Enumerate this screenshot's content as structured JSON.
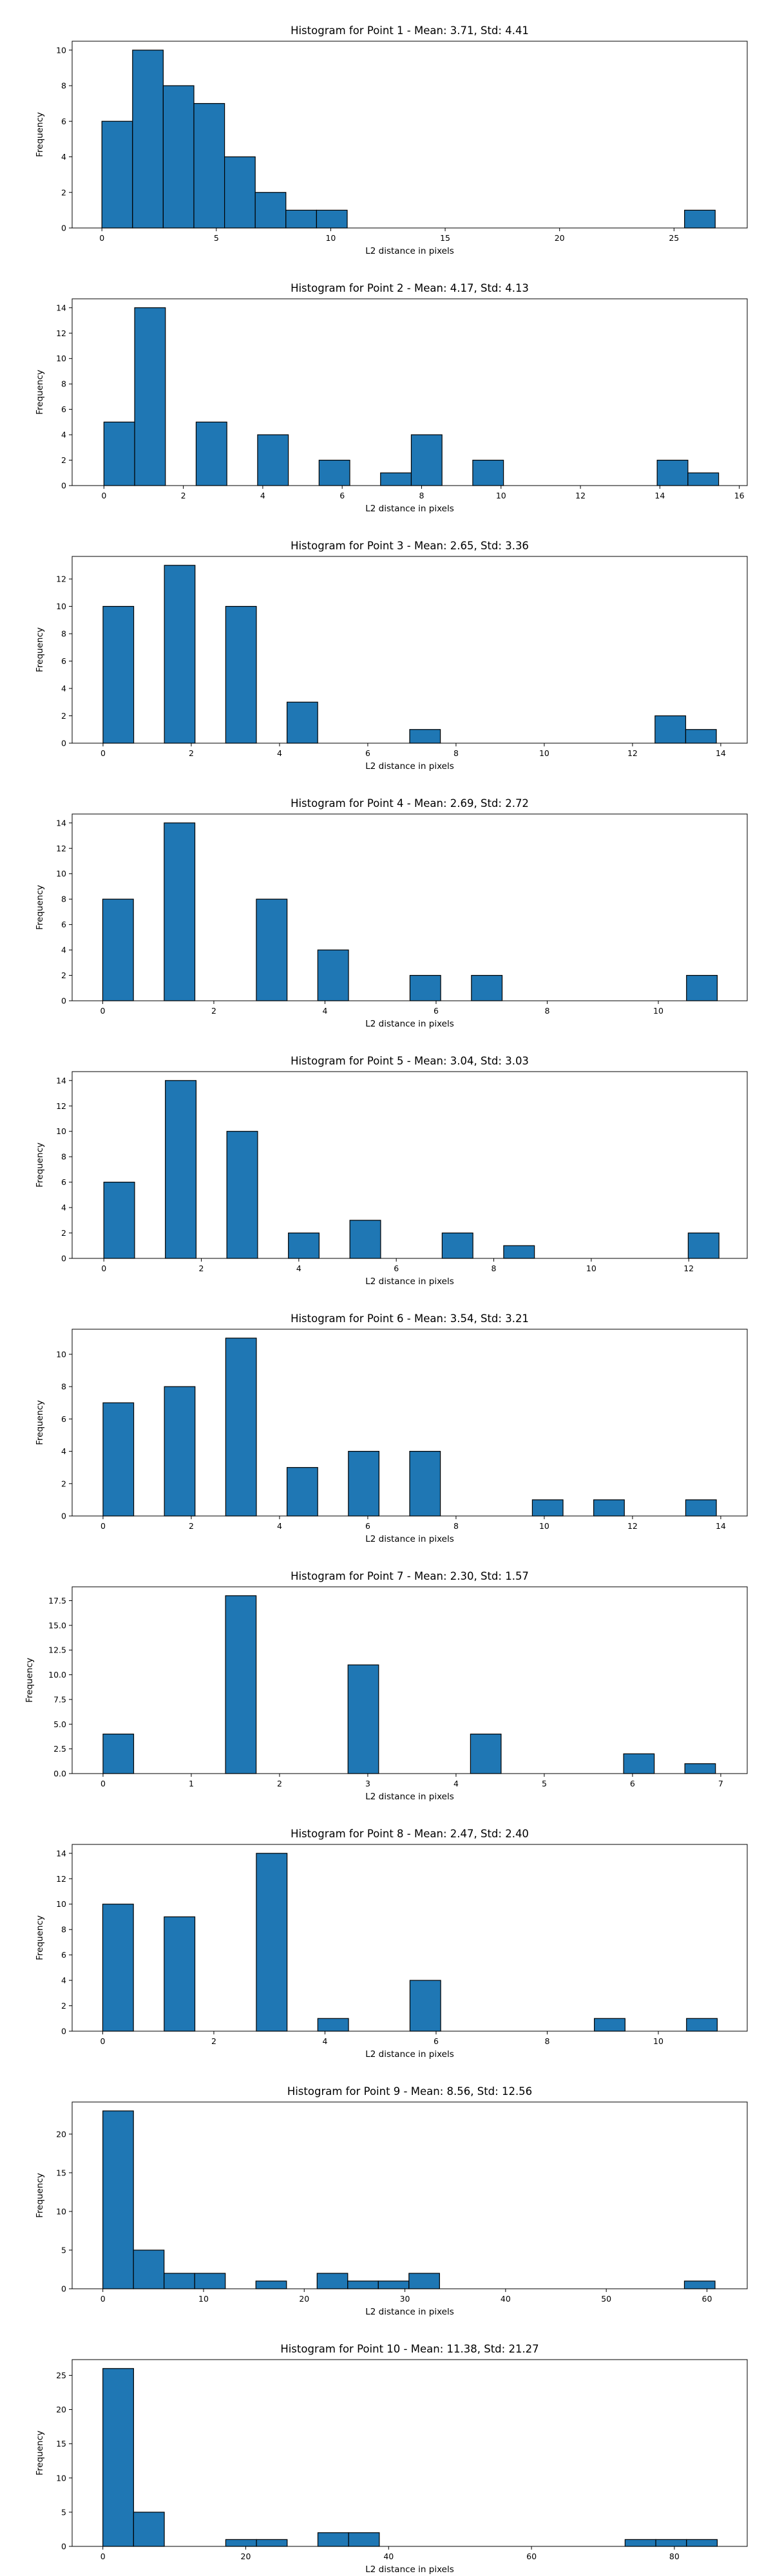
{
  "chart_data": [
    {
      "type": "bar",
      "title": "Histogram for Point 1 - Mean: 3.71, Std: 4.41",
      "xlabel": "L2 distance in pixels",
      "ylabel": "Frequency",
      "xlim": [
        -1.3,
        28.2
      ],
      "ylim": [
        0,
        10.5
      ],
      "xticks": [
        0,
        5,
        10,
        15,
        20,
        25
      ],
      "yticks": [
        0,
        2,
        4,
        6,
        8,
        10
      ],
      "bin_start": 0.0,
      "bin_width": 1.34,
      "values": [
        6,
        10,
        8,
        7,
        4,
        2,
        1,
        1,
        0,
        0,
        0,
        0,
        0,
        0,
        0,
        0,
        0,
        0,
        0,
        1
      ]
    },
    {
      "type": "bar",
      "title": "Histogram for Point 2 - Mean: 4.17, Std: 4.13",
      "xlabel": "L2 distance in pixels",
      "ylabel": "Frequency",
      "xlim": [
        -0.8,
        16.2
      ],
      "ylim": [
        0,
        14.7
      ],
      "xticks": [
        0,
        2,
        4,
        6,
        8,
        10,
        12,
        14,
        16
      ],
      "yticks": [
        0,
        2,
        4,
        6,
        8,
        10,
        12,
        14
      ],
      "bin_start": 0.0,
      "bin_width": 0.774,
      "values": [
        5,
        14,
        0,
        5,
        0,
        4,
        0,
        2,
        0,
        1,
        4,
        0,
        2,
        0,
        0,
        0,
        0,
        0,
        2,
        1
      ]
    },
    {
      "type": "bar",
      "title": "Histogram for Point 3 - Mean: 2.65, Std: 3.36",
      "xlabel": "L2 distance in pixels",
      "ylabel": "Frequency",
      "xlim": [
        -0.7,
        14.6
      ],
      "ylim": [
        0,
        13.65
      ],
      "xticks": [
        0,
        2,
        4,
        6,
        8,
        10,
        12,
        14
      ],
      "yticks": [
        0,
        2,
        4,
        6,
        8,
        10,
        12
      ],
      "bin_start": 0.0,
      "bin_width": 0.695,
      "values": [
        10,
        0,
        13,
        0,
        10,
        0,
        3,
        0,
        0,
        0,
        1,
        0,
        0,
        0,
        0,
        0,
        0,
        0,
        2,
        1
      ]
    },
    {
      "type": "bar",
      "title": "Histogram for Point 4 - Mean: 2.69, Std: 2.72",
      "xlabel": "L2 distance in pixels",
      "ylabel": "Frequency",
      "xlim": [
        -0.55,
        11.6
      ],
      "ylim": [
        0,
        14.7
      ],
      "xticks": [
        0,
        2,
        4,
        6,
        8,
        10
      ],
      "yticks": [
        0,
        2,
        4,
        6,
        8,
        10,
        12,
        14
      ],
      "bin_start": 0.0,
      "bin_width": 0.553,
      "values": [
        8,
        0,
        14,
        0,
        0,
        8,
        0,
        4,
        0,
        0,
        2,
        0,
        2,
        0,
        0,
        0,
        0,
        0,
        0,
        2
      ]
    },
    {
      "type": "bar",
      "title": "Histogram for Point 5 - Mean: 3.04, Std: 3.03",
      "xlabel": "L2 distance in pixels",
      "ylabel": "Frequency",
      "xlim": [
        -0.65,
        13.2
      ],
      "ylim": [
        0,
        14.7
      ],
      "xticks": [
        0,
        2,
        4,
        6,
        8,
        10,
        12
      ],
      "yticks": [
        0,
        2,
        4,
        6,
        8,
        10,
        12,
        14
      ],
      "bin_start": 0.0,
      "bin_width": 0.631,
      "values": [
        6,
        0,
        14,
        0,
        10,
        0,
        2,
        0,
        3,
        0,
        0,
        2,
        0,
        1,
        0,
        0,
        0,
        0,
        0,
        2
      ]
    },
    {
      "type": "bar",
      "title": "Histogram for Point 6 - Mean: 3.54, Std: 3.21",
      "xlabel": "L2 distance in pixels",
      "ylabel": "Frequency",
      "xlim": [
        -0.7,
        14.6
      ],
      "ylim": [
        0,
        11.55
      ],
      "xticks": [
        0,
        2,
        4,
        6,
        8,
        10,
        12,
        14
      ],
      "yticks": [
        0,
        2,
        4,
        6,
        8,
        10
      ],
      "bin_start": 0.0,
      "bin_width": 0.695,
      "values": [
        7,
        0,
        8,
        0,
        11,
        0,
        3,
        0,
        4,
        0,
        4,
        0,
        0,
        0,
        1,
        0,
        1,
        0,
        0,
        1
      ]
    },
    {
      "type": "bar",
      "title": "Histogram for Point 7 - Mean: 2.30, Std: 1.57",
      "xlabel": "L2 distance in pixels",
      "ylabel": "Frequency",
      "xlim": [
        -0.35,
        7.3
      ],
      "ylim": [
        0,
        18.9
      ],
      "xticks": [
        0,
        1,
        2,
        3,
        4,
        5,
        6,
        7
      ],
      "yticks": [
        0.0,
        2.5,
        5.0,
        7.5,
        10.0,
        12.5,
        15.0,
        17.5
      ],
      "bin_start": 0.0,
      "bin_width": 0.347,
      "values": [
        4,
        0,
        0,
        0,
        18,
        0,
        0,
        0,
        11,
        0,
        0,
        0,
        4,
        0,
        0,
        0,
        0,
        2,
        0,
        1
      ]
    },
    {
      "type": "bar",
      "title": "Histogram for Point 8 - Mean: 2.47, Std: 2.40",
      "xlabel": "L2 distance in pixels",
      "ylabel": "Frequency",
      "xlim": [
        -0.55,
        11.6
      ],
      "ylim": [
        0,
        14.7
      ],
      "xticks": [
        0,
        2,
        4,
        6,
        8,
        10
      ],
      "yticks": [
        0,
        2,
        4,
        6,
        8,
        10,
        12,
        14
      ],
      "bin_start": 0.0,
      "bin_width": 0.553,
      "values": [
        10,
        0,
        9,
        0,
        0,
        14,
        0,
        1,
        0,
        0,
        4,
        0,
        0,
        0,
        0,
        0,
        1,
        0,
        0,
        1
      ]
    },
    {
      "type": "bar",
      "title": "Histogram for Point 9 - Mean: 8.56, Std: 12.56",
      "xlabel": "L2 distance in pixels",
      "ylabel": "Frequency",
      "xlim": [
        -3.05,
        64.0
      ],
      "ylim": [
        0,
        24.15
      ],
      "xticks": [
        0,
        10,
        20,
        30,
        40,
        50,
        60
      ],
      "yticks": [
        0,
        5,
        10,
        15,
        20
      ],
      "bin_start": 0.0,
      "bin_width": 3.04,
      "values": [
        23,
        5,
        2,
        2,
        0,
        1,
        0,
        2,
        1,
        1,
        2,
        0,
        0,
        0,
        0,
        0,
        0,
        0,
        0,
        1
      ]
    },
    {
      "type": "bar",
      "title": "Histogram for Point 10 - Mean: 11.38, Std: 21.27",
      "xlabel": "L2 distance in pixels",
      "ylabel": "Frequency",
      "xlim": [
        -4.3,
        90.2
      ],
      "ylim": [
        0,
        27.3
      ],
      "xticks": [
        0,
        20,
        40,
        60,
        80
      ],
      "yticks": [
        0,
        5,
        10,
        15,
        20,
        25
      ],
      "bin_start": 0.0,
      "bin_width": 4.3,
      "values": [
        26,
        5,
        0,
        0,
        1,
        1,
        0,
        2,
        2,
        0,
        0,
        0,
        0,
        0,
        0,
        0,
        0,
        1,
        1,
        1
      ]
    }
  ],
  "colors": {
    "bar_fill": "#1f77b4",
    "bar_edge": "#000000",
    "axis": "#000000",
    "text": "#000000",
    "background": "#ffffff"
  }
}
